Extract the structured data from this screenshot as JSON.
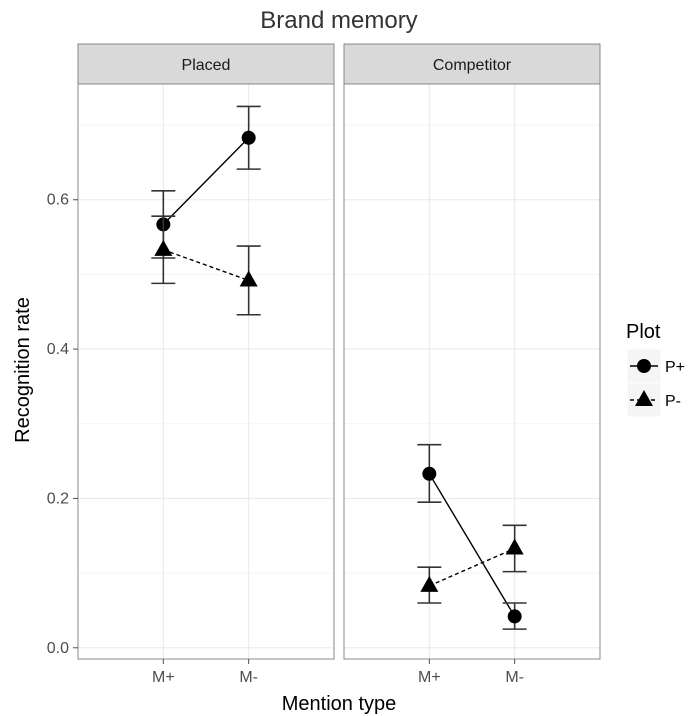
{
  "chart_data": {
    "type": "line",
    "title": "Brand memory",
    "xlabel": "Mention type",
    "ylabel": "Recognition rate",
    "categories": [
      "M+",
      "M-"
    ],
    "ylim": [
      -0.015,
      0.755
    ],
    "yticks": [
      0.0,
      0.2,
      0.4,
      0.6
    ],
    "ytick_labels": [
      "0.0",
      "0.2",
      "0.4",
      "0.6"
    ],
    "grid": true,
    "legend": {
      "title": "Plot",
      "position": "right"
    },
    "panels": [
      {
        "name": "Placed",
        "series": [
          {
            "name": "P+",
            "marker": "circle",
            "linestyle": "solid",
            "values": [
              0.567,
              0.683
            ],
            "lower": [
              0.522,
              0.641
            ],
            "upper": [
              0.612,
              0.725
            ]
          },
          {
            "name": "P-",
            "marker": "triangle",
            "linestyle": "dashed",
            "values": [
              0.533,
              0.492
            ],
            "lower": [
              0.488,
              0.446
            ],
            "upper": [
              0.578,
              0.538
            ]
          }
        ]
      },
      {
        "name": "Competitor",
        "series": [
          {
            "name": "P+",
            "marker": "circle",
            "linestyle": "solid",
            "values": [
              0.233,
              0.042
            ],
            "lower": [
              0.195,
              0.025
            ],
            "upper": [
              0.272,
              0.06
            ]
          },
          {
            "name": "P-",
            "marker": "triangle",
            "linestyle": "dashed",
            "values": [
              0.083,
              0.133
            ],
            "lower": [
              0.06,
              0.102
            ],
            "upper": [
              0.108,
              0.164
            ]
          }
        ]
      }
    ]
  }
}
